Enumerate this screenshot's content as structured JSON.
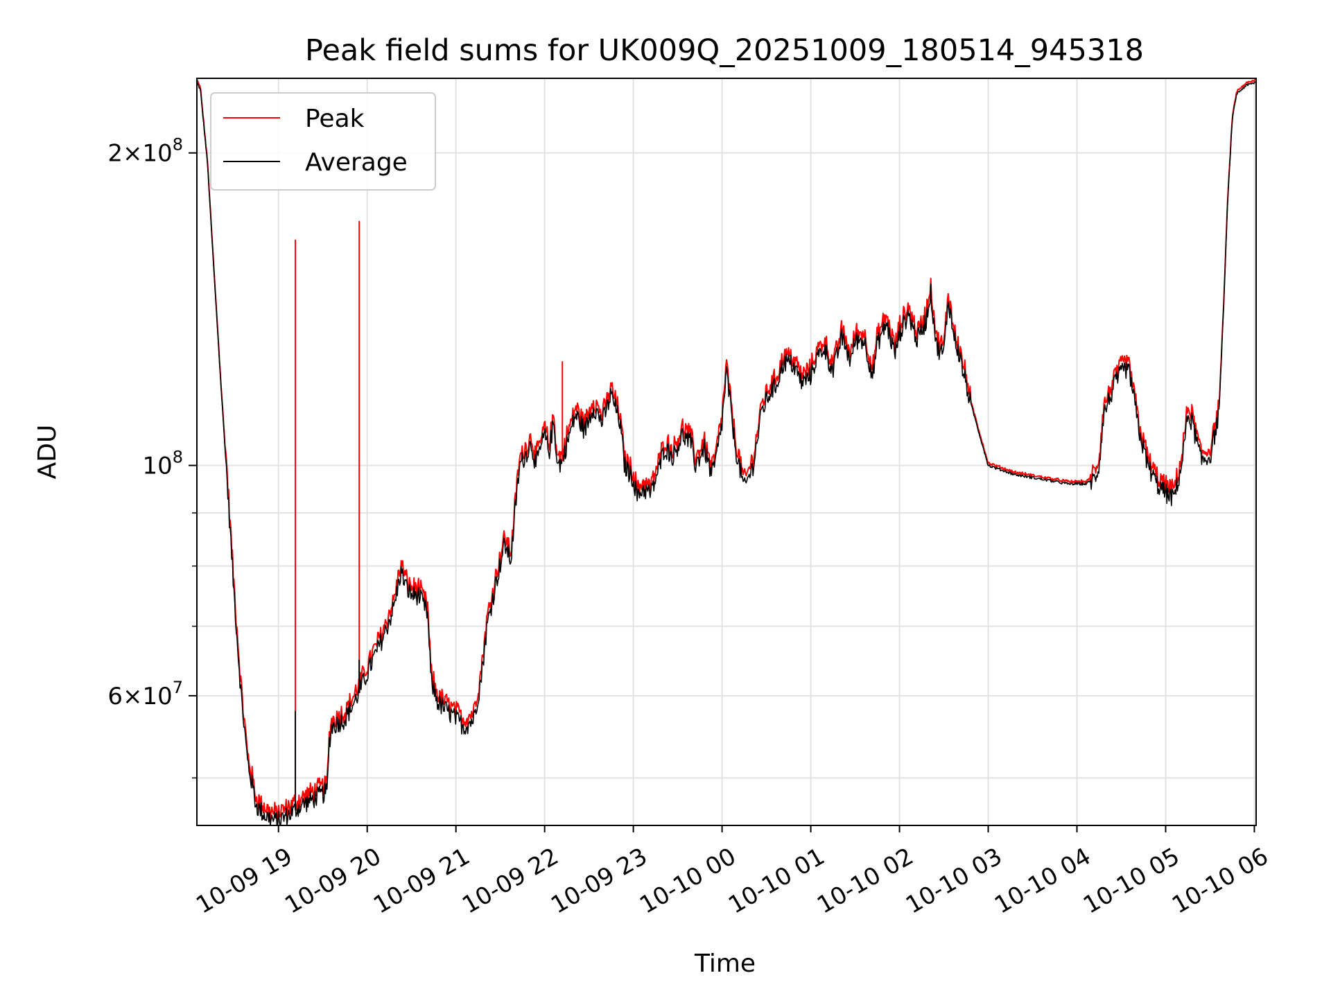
{
  "chart_data": {
    "type": "line",
    "title": "Peak field sums for UK009Q_20251009_180514_945318",
    "xlabel": "Time",
    "ylabel": "ADU",
    "yscale": "log",
    "xlim_hours": [
      -0.92,
      11.02
    ],
    "ylim": [
      45000000,
      236000000
    ],
    "x_ticks": [
      {
        "hour": 0,
        "label": "10-09 19"
      },
      {
        "hour": 1,
        "label": "10-09 20"
      },
      {
        "hour": 2,
        "label": "10-09 21"
      },
      {
        "hour": 3,
        "label": "10-09 22"
      },
      {
        "hour": 4,
        "label": "10-09 23"
      },
      {
        "hour": 5,
        "label": "10-10 00"
      },
      {
        "hour": 6,
        "label": "10-10 01"
      },
      {
        "hour": 7,
        "label": "10-10 02"
      },
      {
        "hour": 8,
        "label": "10-10 03"
      },
      {
        "hour": 9,
        "label": "10-10 04"
      },
      {
        "hour": 10,
        "label": "10-10 05"
      },
      {
        "hour": 11,
        "label": "10-10 06"
      }
    ],
    "y_major_ticks": [
      {
        "value": 200000000,
        "mantissa": "2",
        "base": "10",
        "exp": "8"
      },
      {
        "value": 100000000,
        "mantissa": "",
        "base": "10",
        "exp": "8"
      },
      {
        "value": 60000000,
        "mantissa": "6",
        "base": "10",
        "exp": "7"
      }
    ],
    "y_minor_ticks": [
      50000000,
      70000000,
      80000000,
      90000000
    ],
    "grid": true,
    "legend": {
      "position": "top-left",
      "entries": [
        "Peak",
        "Average"
      ]
    },
    "series": [
      {
        "name": "Peak",
        "color": "#ff0000",
        "spikes": [
          {
            "hour": 0.19,
            "value": 165000000
          },
          {
            "hour": 0.91,
            "value": 172000000
          },
          {
            "hour": 3.2,
            "value": 126000000
          }
        ]
      },
      {
        "name": "Average",
        "color": "#000000",
        "spikes": [
          {
            "hour": 0.19,
            "value": 58000000
          },
          {
            "hour": 0.91,
            "value": 65000000
          }
        ]
      }
    ],
    "profile_hours": [
      -0.92,
      -0.88,
      -0.8,
      -0.72,
      -0.65,
      -0.58,
      -0.5,
      -0.42,
      -0.35,
      -0.25,
      -0.15,
      -0.05,
      0.0,
      0.1,
      0.18,
      0.25,
      0.35,
      0.45,
      0.55,
      0.57,
      0.6,
      0.75,
      0.85,
      1.0,
      1.1,
      1.2,
      1.3,
      1.38,
      1.45,
      1.5,
      1.58,
      1.68,
      1.72,
      1.8,
      1.9,
      2.0,
      2.1,
      2.2,
      2.28,
      2.35,
      2.45,
      2.55,
      2.62,
      2.68,
      2.72,
      2.8,
      2.85,
      2.9,
      3.0,
      3.05,
      3.1,
      3.15,
      3.2,
      3.25,
      3.35,
      3.45,
      3.55,
      3.65,
      3.75,
      3.85,
      3.9,
      4.0,
      4.05,
      4.1,
      4.2,
      4.3,
      4.35,
      4.45,
      4.55,
      4.65,
      4.7,
      4.8,
      4.88,
      4.92,
      5.0,
      5.05,
      5.15,
      5.25,
      5.35,
      5.45,
      5.55,
      5.6,
      5.7,
      5.8,
      5.9,
      6.0,
      6.05,
      6.15,
      6.25,
      6.35,
      6.45,
      6.5,
      6.6,
      6.7,
      6.75,
      6.85,
      6.95,
      7.0,
      7.1,
      7.2,
      7.3,
      7.35,
      7.42,
      7.5,
      7.55,
      7.6,
      7.65,
      7.7,
      7.8,
      8.0,
      8.3,
      8.6,
      8.9,
      9.1,
      9.2,
      9.25,
      9.3,
      9.45,
      9.55,
      9.6,
      9.7,
      9.8,
      9.9,
      10.0,
      10.08,
      10.12,
      10.18,
      10.25,
      10.3,
      10.4,
      10.5,
      10.6,
      10.65,
      10.7,
      10.75,
      10.8,
      10.9,
      11.02
    ],
    "profile_values": [
      234000000,
      230000000,
      195000000,
      150000000,
      120000000,
      97000000,
      75000000,
      60000000,
      52000000,
      47000000,
      46000000,
      45500000,
      45500000,
      46000000,
      46500000,
      47000000,
      47500000,
      48000000,
      48500000,
      54000000,
      56000000,
      57000000,
      59000000,
      63000000,
      66000000,
      69000000,
      73000000,
      79000000,
      76000000,
      75000000,
      75000000,
      72000000,
      62000000,
      59000000,
      58000000,
      57000000,
      56000000,
      57000000,
      62000000,
      70000000,
      77000000,
      84000000,
      81000000,
      93000000,
      100000000,
      103000000,
      105000000,
      100000000,
      107000000,
      103000000,
      110000000,
      100000000,
      101000000,
      105000000,
      112000000,
      108000000,
      114000000,
      110000000,
      117000000,
      110000000,
      100000000,
      97000000,
      93000000,
      95000000,
      94000000,
      100000000,
      104000000,
      102000000,
      107000000,
      105000000,
      100000000,
      104000000,
      98000000,
      100000000,
      110000000,
      123000000,
      104000000,
      95000000,
      100000000,
      113000000,
      118000000,
      119000000,
      126000000,
      125000000,
      120000000,
      122000000,
      126000000,
      130000000,
      123000000,
      133000000,
      126000000,
      132000000,
      132000000,
      122000000,
      131000000,
      137000000,
      128000000,
      134000000,
      140000000,
      132000000,
      138000000,
      147000000,
      130000000,
      128000000,
      145000000,
      135000000,
      130000000,
      125000000,
      115000000,
      100000000,
      98000000,
      97000000,
      96000000,
      96000000,
      97000000,
      100000000,
      112000000,
      121000000,
      124000000,
      122000000,
      108000000,
      100000000,
      96000000,
      94000000,
      93000000,
      95000000,
      100000000,
      112000000,
      110000000,
      101000000,
      102000000,
      112000000,
      140000000,
      180000000,
      215000000,
      228000000,
      232000000,
      234000000,
      235000000
    ]
  }
}
